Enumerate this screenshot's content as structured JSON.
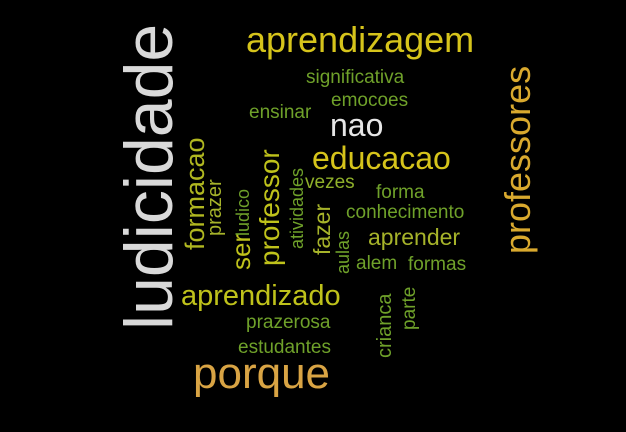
{
  "background": "#000000",
  "words": [
    {
      "text": "ludicidade",
      "color": "#d9d9d9"
    },
    {
      "text": "aprendizagem",
      "color": "#d6c41b"
    },
    {
      "text": "professores",
      "color": "#d9a92e"
    },
    {
      "text": "porque",
      "color": "#d9a444"
    },
    {
      "text": "educacao",
      "color": "#d6c41b"
    },
    {
      "text": "aprendizado",
      "color": "#bfc21b"
    },
    {
      "text": "nao",
      "color": "#e6e6e6"
    },
    {
      "text": "significativa",
      "color": "#6fa12a"
    },
    {
      "text": "emocoes",
      "color": "#6fa12a"
    },
    {
      "text": "ensinar",
      "color": "#6fa12a"
    },
    {
      "text": "professor",
      "color": "#bfc21b"
    },
    {
      "text": "formacao",
      "color": "#b0b720"
    },
    {
      "text": "prazer",
      "color": "#a6b32a"
    },
    {
      "text": "ser",
      "color": "#bfc21b"
    },
    {
      "text": "ludico",
      "color": "#6fa12a"
    },
    {
      "text": "atividades",
      "color": "#6fa12a"
    },
    {
      "text": "fazer",
      "color": "#a6b32a"
    },
    {
      "text": "vezes",
      "color": "#8fb02a"
    },
    {
      "text": "forma",
      "color": "#6fa12a"
    },
    {
      "text": "conhecimento",
      "color": "#6fa12a"
    },
    {
      "text": "aprender",
      "color": "#a6b32a"
    },
    {
      "text": "aulas",
      "color": "#6fa12a"
    },
    {
      "text": "alem",
      "color": "#6fa12a"
    },
    {
      "text": "formas",
      "color": "#6fa12a"
    },
    {
      "text": "prazerosa",
      "color": "#6fa12a"
    },
    {
      "text": "estudantes",
      "color": "#6fa12a"
    },
    {
      "text": "crianca",
      "color": "#6fa12a"
    },
    {
      "text": "parte",
      "color": "#6fa12a"
    }
  ]
}
